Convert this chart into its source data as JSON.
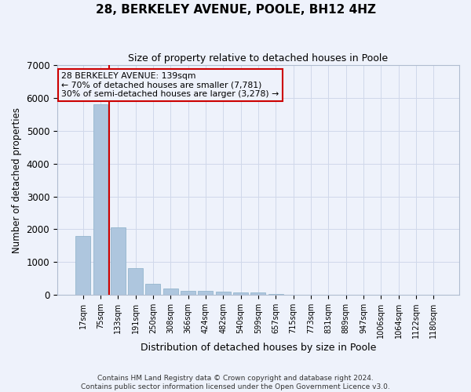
{
  "title": "28, BERKELEY AVENUE, POOLE, BH12 4HZ",
  "subtitle": "Size of property relative to detached houses in Poole",
  "xlabel": "Distribution of detached houses by size in Poole",
  "ylabel": "Number of detached properties",
  "categories": [
    "17sqm",
    "75sqm",
    "133sqm",
    "191sqm",
    "250sqm",
    "308sqm",
    "366sqm",
    "424sqm",
    "482sqm",
    "540sqm",
    "599sqm",
    "657sqm",
    "715sqm",
    "773sqm",
    "831sqm",
    "889sqm",
    "947sqm",
    "1006sqm",
    "1064sqm",
    "1122sqm",
    "1180sqm"
  ],
  "values": [
    1800,
    5800,
    2050,
    820,
    340,
    200,
    135,
    115,
    105,
    80,
    65,
    18,
    15,
    12,
    10,
    8,
    7,
    6,
    5,
    4,
    3
  ],
  "bar_color": "#aec6de",
  "bar_edge_color": "#8aafc8",
  "annotation_text": "28 BERKELEY AVENUE: 139sqm\n← 70% of detached houses are smaller (7,781)\n30% of semi-detached houses are larger (3,278) →",
  "annotation_box_color": "#cc0000",
  "background_color": "#eef2fb",
  "grid_color": "#d0d8ea",
  "ylim": [
    0,
    7000
  ],
  "yticks": [
    0,
    1000,
    2000,
    3000,
    4000,
    5000,
    6000,
    7000
  ],
  "footer_line1": "Contains HM Land Registry data © Crown copyright and database right 2024.",
  "footer_line2": "Contains public sector information licensed under the Open Government Licence v3.0."
}
